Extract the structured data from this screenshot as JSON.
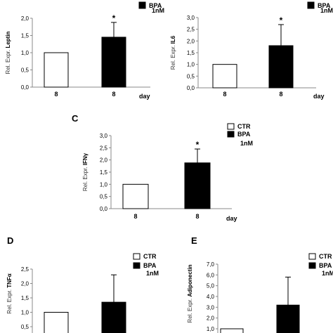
{
  "chart_data": [
    {
      "type": "bar",
      "title": "",
      "panel_letter": "",
      "categories": [
        "8",
        "8"
      ],
      "series": [
        {
          "values": [
            1.0,
            1.45
          ],
          "errors": [
            0,
            0.43
          ]
        }
      ],
      "bar_fills": [
        "#ffffff",
        "#000000"
      ],
      "significance": [
        "",
        "*"
      ],
      "ylabel_prefix": "Rel. Expr.",
      "ylabel_gene": "Leptin",
      "xlabel": "day",
      "ylim": [
        0,
        2
      ],
      "yticks": [
        "0,0",
        "0,5",
        "1,0",
        "1,5",
        "2,0"
      ],
      "legend": [
        {
          "label": "BPA"
        },
        {
          "label": "1nM"
        }
      ],
      "legend_position": "top-right",
      "grid": false
    },
    {
      "type": "bar",
      "title": "",
      "panel_letter": "",
      "categories": [
        "8",
        "8"
      ],
      "series": [
        {
          "values": [
            1.0,
            1.8
          ],
          "errors": [
            0,
            0.9
          ]
        }
      ],
      "bar_fills": [
        "#ffffff",
        "#000000"
      ],
      "significance": [
        "",
        "*"
      ],
      "ylabel_prefix": "Rel. Expr.",
      "ylabel_gene": "IL6",
      "xlabel": "day",
      "ylim": [
        0,
        3
      ],
      "yticks": [
        "0,0",
        "0,5",
        "1,0",
        "1,5",
        "2,0",
        "2,5",
        "3,0"
      ],
      "legend": [
        {
          "label": "BPA"
        },
        {
          "label": "1nM"
        }
      ],
      "legend_position": "top-right",
      "grid": false
    },
    {
      "type": "bar",
      "title": "",
      "panel_letter": "C",
      "categories": [
        "8",
        "8"
      ],
      "series": [
        {
          "values": [
            1.0,
            1.88
          ],
          "errors": [
            0,
            0.57
          ]
        }
      ],
      "bar_fills": [
        "#ffffff",
        "#000000"
      ],
      "significance": [
        "",
        "*"
      ],
      "ylabel_prefix": "Rel. Expr.",
      "ylabel_gene": "IFNγ",
      "xlabel": "day",
      "ylim": [
        0,
        3
      ],
      "yticks": [
        "0,0",
        "0,5",
        "1,0",
        "1,5",
        "2,0",
        "2,5",
        "3,0"
      ],
      "legend": [
        {
          "label": "CTR"
        },
        {
          "label": "BPA"
        },
        {
          "label": "1nM"
        }
      ],
      "legend_position": "top-right",
      "grid": false
    },
    {
      "type": "bar",
      "title": "",
      "panel_letter": "D",
      "categories": [
        "",
        ""
      ],
      "series": [
        {
          "values": [
            1.0,
            1.35
          ],
          "errors": [
            0,
            0.95
          ]
        }
      ],
      "bar_fills": [
        "#ffffff",
        "#000000"
      ],
      "significance": [
        "",
        ""
      ],
      "ylabel_prefix": "Rel. Expr.",
      "ylabel_gene": "TNFα",
      "xlabel": "",
      "ylim": [
        0,
        2.5
      ],
      "yticks": [
        "0,5",
        "1,0",
        "1,5",
        "2,0",
        "2,5"
      ],
      "legend": [
        {
          "label": "CTR"
        },
        {
          "label": "BPA"
        },
        {
          "label": "1nM"
        }
      ],
      "legend_position": "top-right",
      "grid": false
    },
    {
      "type": "bar",
      "title": "",
      "panel_letter": "E",
      "categories": [
        "",
        ""
      ],
      "series": [
        {
          "values": [
            1.0,
            3.2
          ],
          "errors": [
            0,
            2.6
          ]
        }
      ],
      "bar_fills": [
        "#ffffff",
        "#000000"
      ],
      "significance": [
        "",
        ""
      ],
      "ylabel_prefix": "Rel. Expr.",
      "ylabel_gene": "Adiponectin",
      "xlabel": "",
      "ylim": [
        0,
        7
      ],
      "yticks": [
        "1,0",
        "2,0",
        "3,0",
        "4,0",
        "5,0",
        "6,0",
        "7,0"
      ],
      "legend": [
        {
          "label": "CTR"
        },
        {
          "label": "BPA"
        },
        {
          "label": "1nM"
        }
      ],
      "legend_position": "top-right",
      "grid": false
    }
  ]
}
